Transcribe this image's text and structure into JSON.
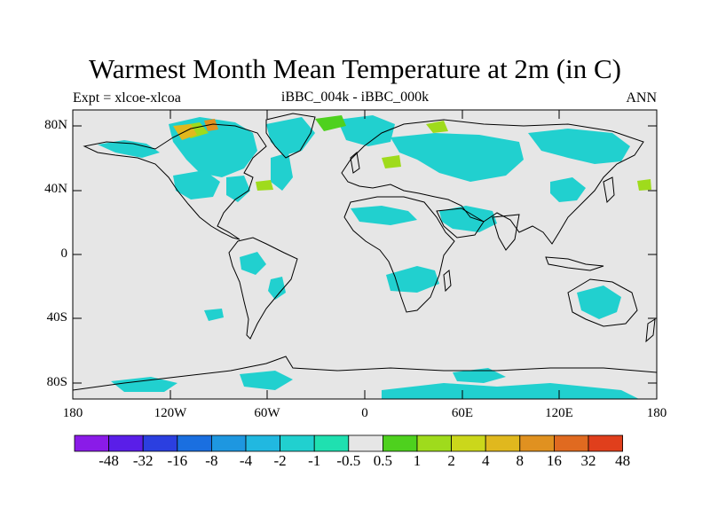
{
  "title": "Warmest Month Mean Temperature at 2m (in C)",
  "subtitle_left": "Expt = xlcoe-xlcoa",
  "subtitle_center": "iBBC_004k - iBBC_000k",
  "subtitle_right": "ANN",
  "y_ticks": [
    "80N",
    "40N",
    "0",
    "40S",
    "80S"
  ],
  "x_ticks": [
    "180",
    "120W",
    "60W",
    "0",
    "60E",
    "120E",
    "180"
  ],
  "colorbar": {
    "colors": [
      "#8a1be8",
      "#5a1ee8",
      "#2b3fe0",
      "#1a6fe0",
      "#1e97e0",
      "#21b8e0",
      "#21d0cf",
      "#1fe0b0",
      "#e6e6e6",
      "#4ed11e",
      "#9fdb1c",
      "#cbd71b",
      "#e0b81e",
      "#e09120",
      "#e06a20",
      "#e03f1c"
    ],
    "labels": [
      "-48",
      "-32",
      "-16",
      "-8",
      "-4",
      "-2",
      "-1",
      "-0.5",
      "0.5",
      "1",
      "2",
      "4",
      "8",
      "16",
      "32",
      "48"
    ]
  },
  "map": {
    "background_color": "#e6e6e6",
    "anomaly_color": "#21d0cf",
    "warm_color": "#9fdb1c",
    "hot_color": "#e0b81e"
  }
}
